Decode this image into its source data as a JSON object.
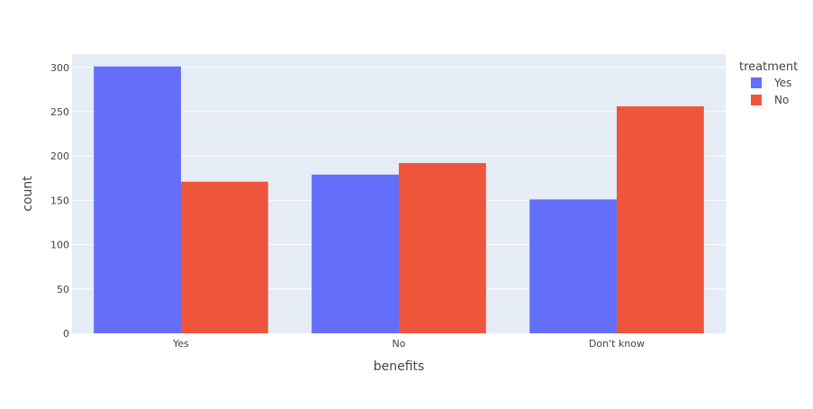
{
  "chart_data": {
    "type": "bar",
    "barmode": "group",
    "title": "",
    "xlabel": "benefits",
    "ylabel": "count",
    "categories": [
      "Yes",
      "No",
      "Don't know"
    ],
    "ylim": [
      0,
      315
    ],
    "yticks": [
      0,
      50,
      100,
      150,
      200,
      250,
      300
    ],
    "grid": true,
    "legend": {
      "title": "treatment",
      "placement": "top-right"
    },
    "series": [
      {
        "name": "Yes",
        "color": "#636efa",
        "values": [
          301,
          179,
          151
        ]
      },
      {
        "name": "No",
        "color": "#ef553b",
        "values": [
          171,
          192,
          256
        ]
      }
    ],
    "colors": {
      "plot_background": "#e5ecf6",
      "gridline": "#ffffff",
      "text": "#444444"
    }
  }
}
